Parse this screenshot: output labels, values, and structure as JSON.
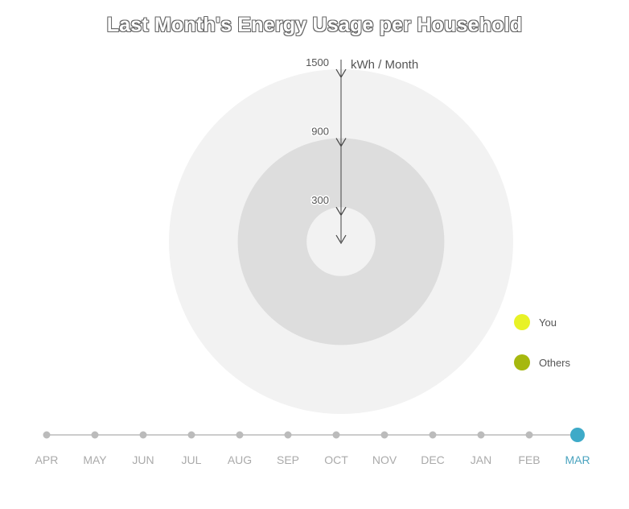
{
  "title": "Last Month's Energy Usage per Household",
  "colors": {
    "ring_outer": "#f2f2f2",
    "ring_middle": "#dddddd",
    "ring_inner": "#f2f2f2",
    "legend_you": "#e8f226",
    "legend_others": "#a6b80e",
    "timeline_line": "#cccccc",
    "timeline_dot": "#bbbbbb",
    "timeline_active": "#3eaac8"
  },
  "chart_data": {
    "type": "radial",
    "axis_unit": "kWh / Month",
    "axis_ticks": [
      {
        "value": 1500,
        "label": "1500"
      },
      {
        "value": 900,
        "label": "900"
      },
      {
        "value": 300,
        "label": "300"
      }
    ],
    "max": 1500,
    "legend": [
      {
        "label": "You",
        "color": "#e8f226"
      },
      {
        "label": "Others",
        "color": "#a6b80e"
      }
    ]
  },
  "timeline": {
    "months": [
      "APR",
      "MAY",
      "JUN",
      "JUL",
      "AUG",
      "SEP",
      "OCT",
      "NOV",
      "DEC",
      "JAN",
      "FEB",
      "MAR"
    ],
    "selected": "MAR"
  }
}
